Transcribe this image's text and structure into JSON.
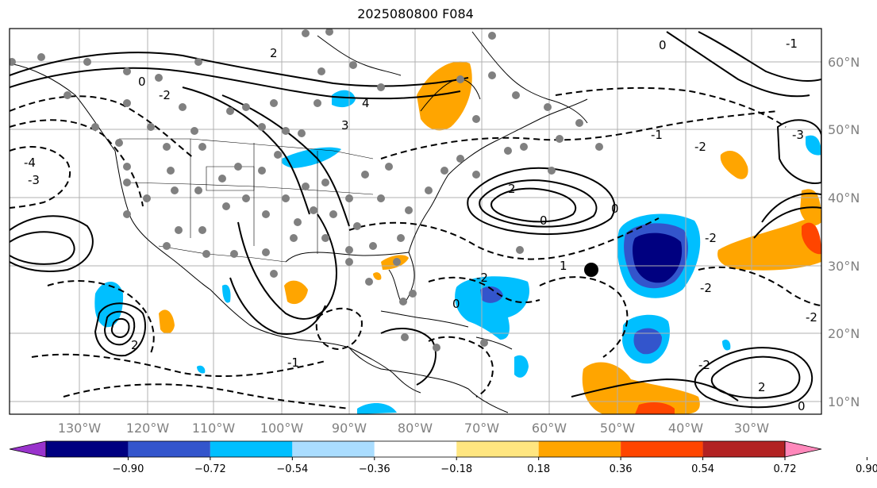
{
  "title": "2025080800 F084",
  "colors": {
    "neg_090": "#9933cc",
    "neg_072": "#000080",
    "neg_054": "#3355cc",
    "neg_036": "#00bfff",
    "neg_018": "#aaddff",
    "neutral": "#ffffff",
    "pos_018": "#ffe680",
    "pos_036": "#ffa500",
    "pos_054": "#ff4500",
    "pos_072": "#b22222",
    "pos_090": "#ff88bb",
    "contour": "#000000",
    "grid": "#b0b0b0",
    "station": "#808080"
  },
  "map": {
    "lat_labels": [
      "60°N",
      "50°N",
      "40°N",
      "30°N",
      "20°N",
      "10°N"
    ],
    "lon_labels": [
      "130°W",
      "120°W",
      "110°W",
      "100°W",
      "90°W",
      "80°W",
      "70°W",
      "60°W",
      "50°W",
      "40°W",
      "30°W"
    ],
    "contour_labels": [
      "0",
      "-2",
      "2",
      "-4",
      "4",
      "-3",
      "3",
      "-1",
      "1",
      "-2",
      "2",
      "0",
      "-2",
      "0",
      "-1",
      "2",
      "-2",
      "0",
      "-3",
      "2",
      "-2",
      "0",
      "-2",
      "-2",
      "-1",
      "0"
    ]
  },
  "colorbar": {
    "tick_labels": [
      "−0.90",
      "−0.72",
      "−0.54",
      "−0.36",
      "−0.18",
      "0.18",
      "0.36",
      "0.54",
      "0.72",
      "0.90"
    ],
    "fill_colors": [
      "#9933cc",
      "#000080",
      "#3355cc",
      "#00bfff",
      "#aaddff",
      "#ffffff",
      "#ffe680",
      "#ffa500",
      "#ff4500",
      "#b22222",
      "#ff88bb"
    ]
  }
}
